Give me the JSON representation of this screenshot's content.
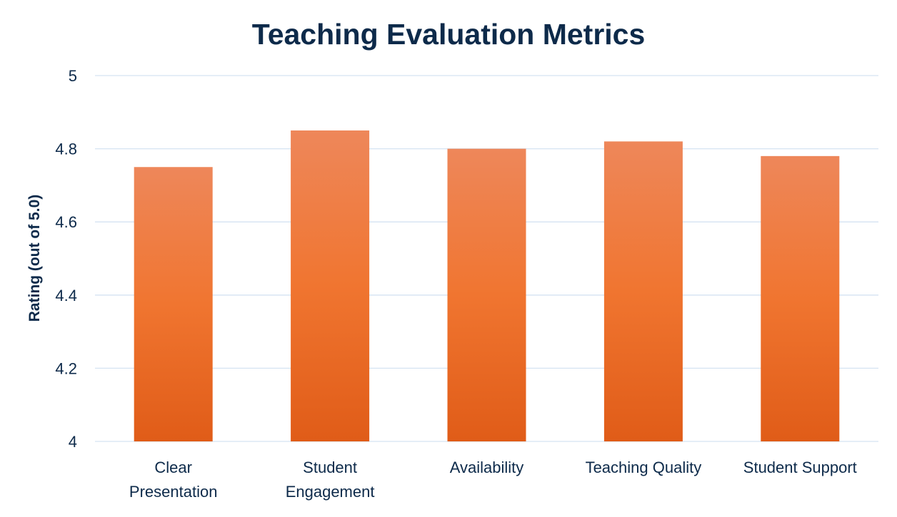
{
  "chart_data": {
    "type": "bar",
    "title": "Teaching Evaluation Metrics",
    "xlabel": "",
    "ylabel": "Rating (out of 5.0)",
    "ylim": [
      4,
      5
    ],
    "yticks": [
      4,
      4.2,
      4.4,
      4.6,
      4.8,
      5
    ],
    "ytick_labels": [
      "4",
      "4.2",
      "4.4",
      "4.6",
      "4.8",
      "5"
    ],
    "grid": true,
    "legend": "none",
    "categories": [
      [
        "Clear",
        "Presentation"
      ],
      [
        "Student",
        "Engagement"
      ],
      [
        "Availability"
      ],
      [
        "Teaching Quality"
      ],
      [
        "Student Support"
      ]
    ],
    "values": [
      4.75,
      4.85,
      4.8,
      4.82,
      4.78
    ],
    "colors": {
      "bar_top": "#EE875A",
      "bar_mid": "#F07530",
      "bar_bottom": "#E05C18",
      "title": "#0D2A4A",
      "text": "#0D2A4A",
      "grid": "#D5E3F2"
    }
  }
}
